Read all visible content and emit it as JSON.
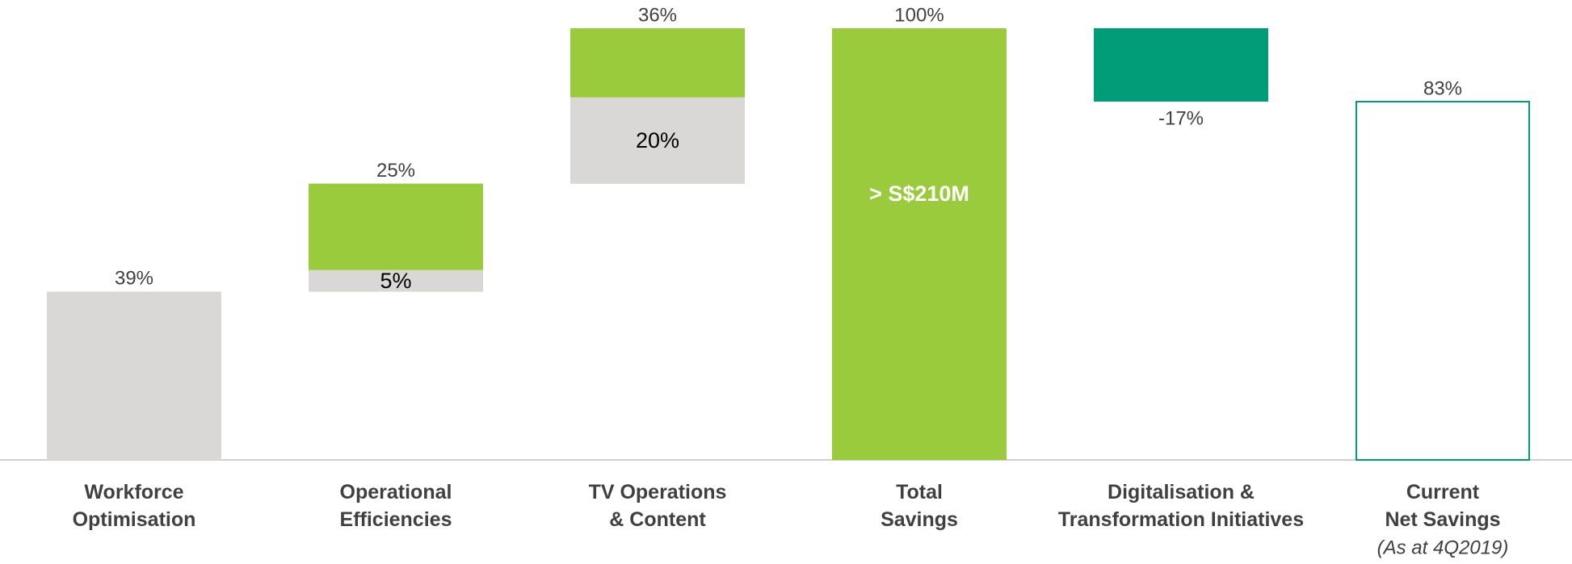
{
  "chart_data": {
    "type": "waterfall",
    "categories": [
      "Workforce\nOptimisation",
      "Operational\nEfficiencies",
      "TV Operations\n& Content",
      "Total\nSavings",
      "Digitalisation &\nTransformation Initiatives",
      "Current\nNet Savings"
    ],
    "values": [
      39,
      25,
      36,
      100,
      -17,
      83
    ],
    "value_labels": [
      "39%",
      "25%",
      "36%",
      "100%",
      "-17%",
      "83%"
    ],
    "measure": [
      "relative",
      "relative",
      "relative",
      "total",
      "relative",
      "total"
    ],
    "colors": [
      "#d9d8d6",
      "#9acb3c",
      "#9acb3c",
      "#9acb3c",
      "#009b77",
      "#ffffff"
    ],
    "edge_colors": [
      null,
      null,
      null,
      null,
      null,
      "#009b77"
    ],
    "base_values": [
      null,
      5,
      20,
      null,
      null,
      null
    ],
    "base_value_labels": [
      null,
      "5%",
      "20%",
      null,
      null,
      null
    ],
    "base_color": "#d9d8d6",
    "bar_annotation": {
      "index": 3,
      "text": "> S$210M"
    },
    "category_note": {
      "index": 5,
      "text": "(As at 4Q2019)"
    },
    "ylim": [
      0,
      100
    ]
  }
}
